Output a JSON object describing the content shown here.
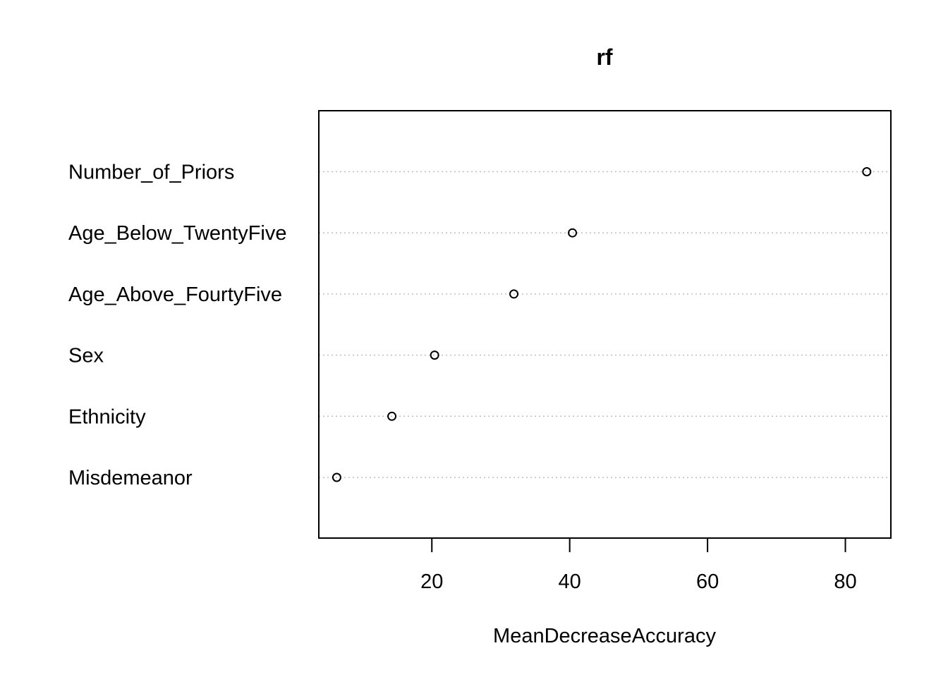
{
  "chart_data": {
    "type": "scatter",
    "title": "rf",
    "xlabel": "MeanDecreaseAccuracy",
    "ylabel": "",
    "categories": [
      "Number_of_Priors",
      "Age_Below_TwentyFive",
      "Age_Above_FourtyFive",
      "Sex",
      "Ethnicity",
      "Misdemeanor"
    ],
    "values": [
      83.1,
      40.4,
      31.9,
      20.4,
      14.2,
      6.2
    ],
    "xlim": [
      3.6,
      86.6
    ],
    "xticks": [
      20,
      40,
      60,
      80
    ],
    "grid": "dotted horizontal guide per category",
    "legend": "none"
  }
}
